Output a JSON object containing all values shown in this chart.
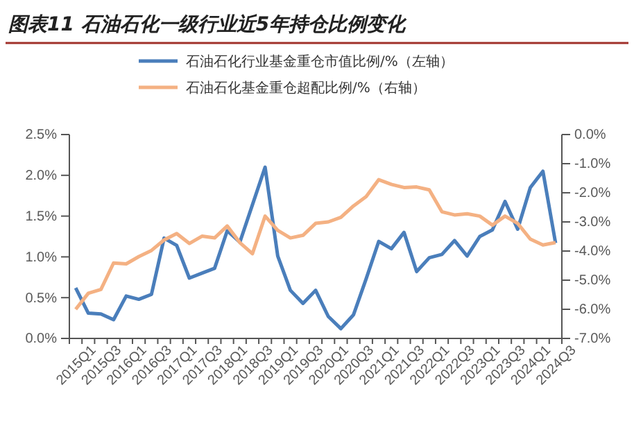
{
  "chart_data": {
    "type": "line",
    "title": "图表11  石油石化一级行业近5年持仓比例变化",
    "categories": [
      "2015Q1",
      null,
      "2015Q3",
      null,
      "2016Q1",
      null,
      "2016Q3",
      null,
      "2017Q1",
      null,
      "2017Q3",
      null,
      "2018Q1",
      null,
      "2018Q3",
      null,
      "2019Q1",
      null,
      "2019Q3",
      null,
      "2020Q1",
      null,
      "2020Q3",
      null,
      "2021Q1",
      null,
      "2021Q3",
      null,
      "2022Q1",
      null,
      "2022Q3",
      null,
      "2023Q1",
      null,
      "2023Q3",
      null,
      "2024Q1",
      null,
      "2024Q3"
    ],
    "series": [
      {
        "name": "石油石化行业基金重仓市值比例/%（左轴）",
        "color": "#4a7ebb",
        "values": [
          0.62,
          0.31,
          0.3,
          0.23,
          0.52,
          0.48,
          0.54,
          1.23,
          1.14,
          0.74,
          0.8,
          0.86,
          1.32,
          1.18,
          1.64,
          2.1,
          1.01,
          0.59,
          0.43,
          0.59,
          0.27,
          0.12,
          0.29,
          0.73,
          1.19,
          1.1,
          1.3,
          0.82,
          0.99,
          1.03,
          1.2,
          1.01,
          1.25,
          1.33,
          1.68,
          1.34,
          1.85,
          2.05,
          1.17
        ]
      },
      {
        "name": "石油石化基金重仓超配比例/%（右轴）",
        "color": "#f4b183",
        "axis": "y2",
        "values": [
          -6.0,
          -5.45,
          -5.32,
          -4.41,
          -4.44,
          -4.19,
          -3.98,
          -3.62,
          -3.4,
          -3.74,
          -3.49,
          -3.55,
          -3.14,
          -3.71,
          -4.09,
          -2.8,
          -3.29,
          -3.55,
          -3.46,
          -3.05,
          -3.0,
          -2.84,
          -2.45,
          -2.13,
          -1.55,
          -1.71,
          -1.82,
          -1.8,
          -1.9,
          -2.65,
          -2.76,
          -2.72,
          -2.8,
          -3.11,
          -2.8,
          -3.05,
          -3.59,
          -3.79,
          -3.71
        ]
      }
    ],
    "ylim": [
      0,
      2.5
    ],
    "yticks": [
      {
        "value": 0,
        "label": "0.0%"
      },
      {
        "value": 0.5,
        "label": "0.5%"
      },
      {
        "value": 1,
        "label": "1.0%"
      },
      {
        "value": 1.5,
        "label": "1.5%"
      },
      {
        "value": 2,
        "label": "2.0%"
      },
      {
        "value": 2.5,
        "label": "2.5%"
      }
    ],
    "y2lim": [
      -7,
      0
    ],
    "y2ticks": [
      {
        "value": 0,
        "label": "0.0%"
      },
      {
        "value": -1,
        "label": "-1.0%"
      },
      {
        "value": -2,
        "label": "-2.0%"
      },
      {
        "value": -3,
        "label": "-3.0%"
      },
      {
        "value": -4,
        "label": "-4.0%"
      },
      {
        "value": -5,
        "label": "-5.0%"
      },
      {
        "value": -6,
        "label": "-6.0%"
      },
      {
        "value": -7,
        "label": "-7.0%"
      }
    ],
    "legend": "top",
    "grid": false,
    "marker": "none",
    "line_style": "solid"
  }
}
